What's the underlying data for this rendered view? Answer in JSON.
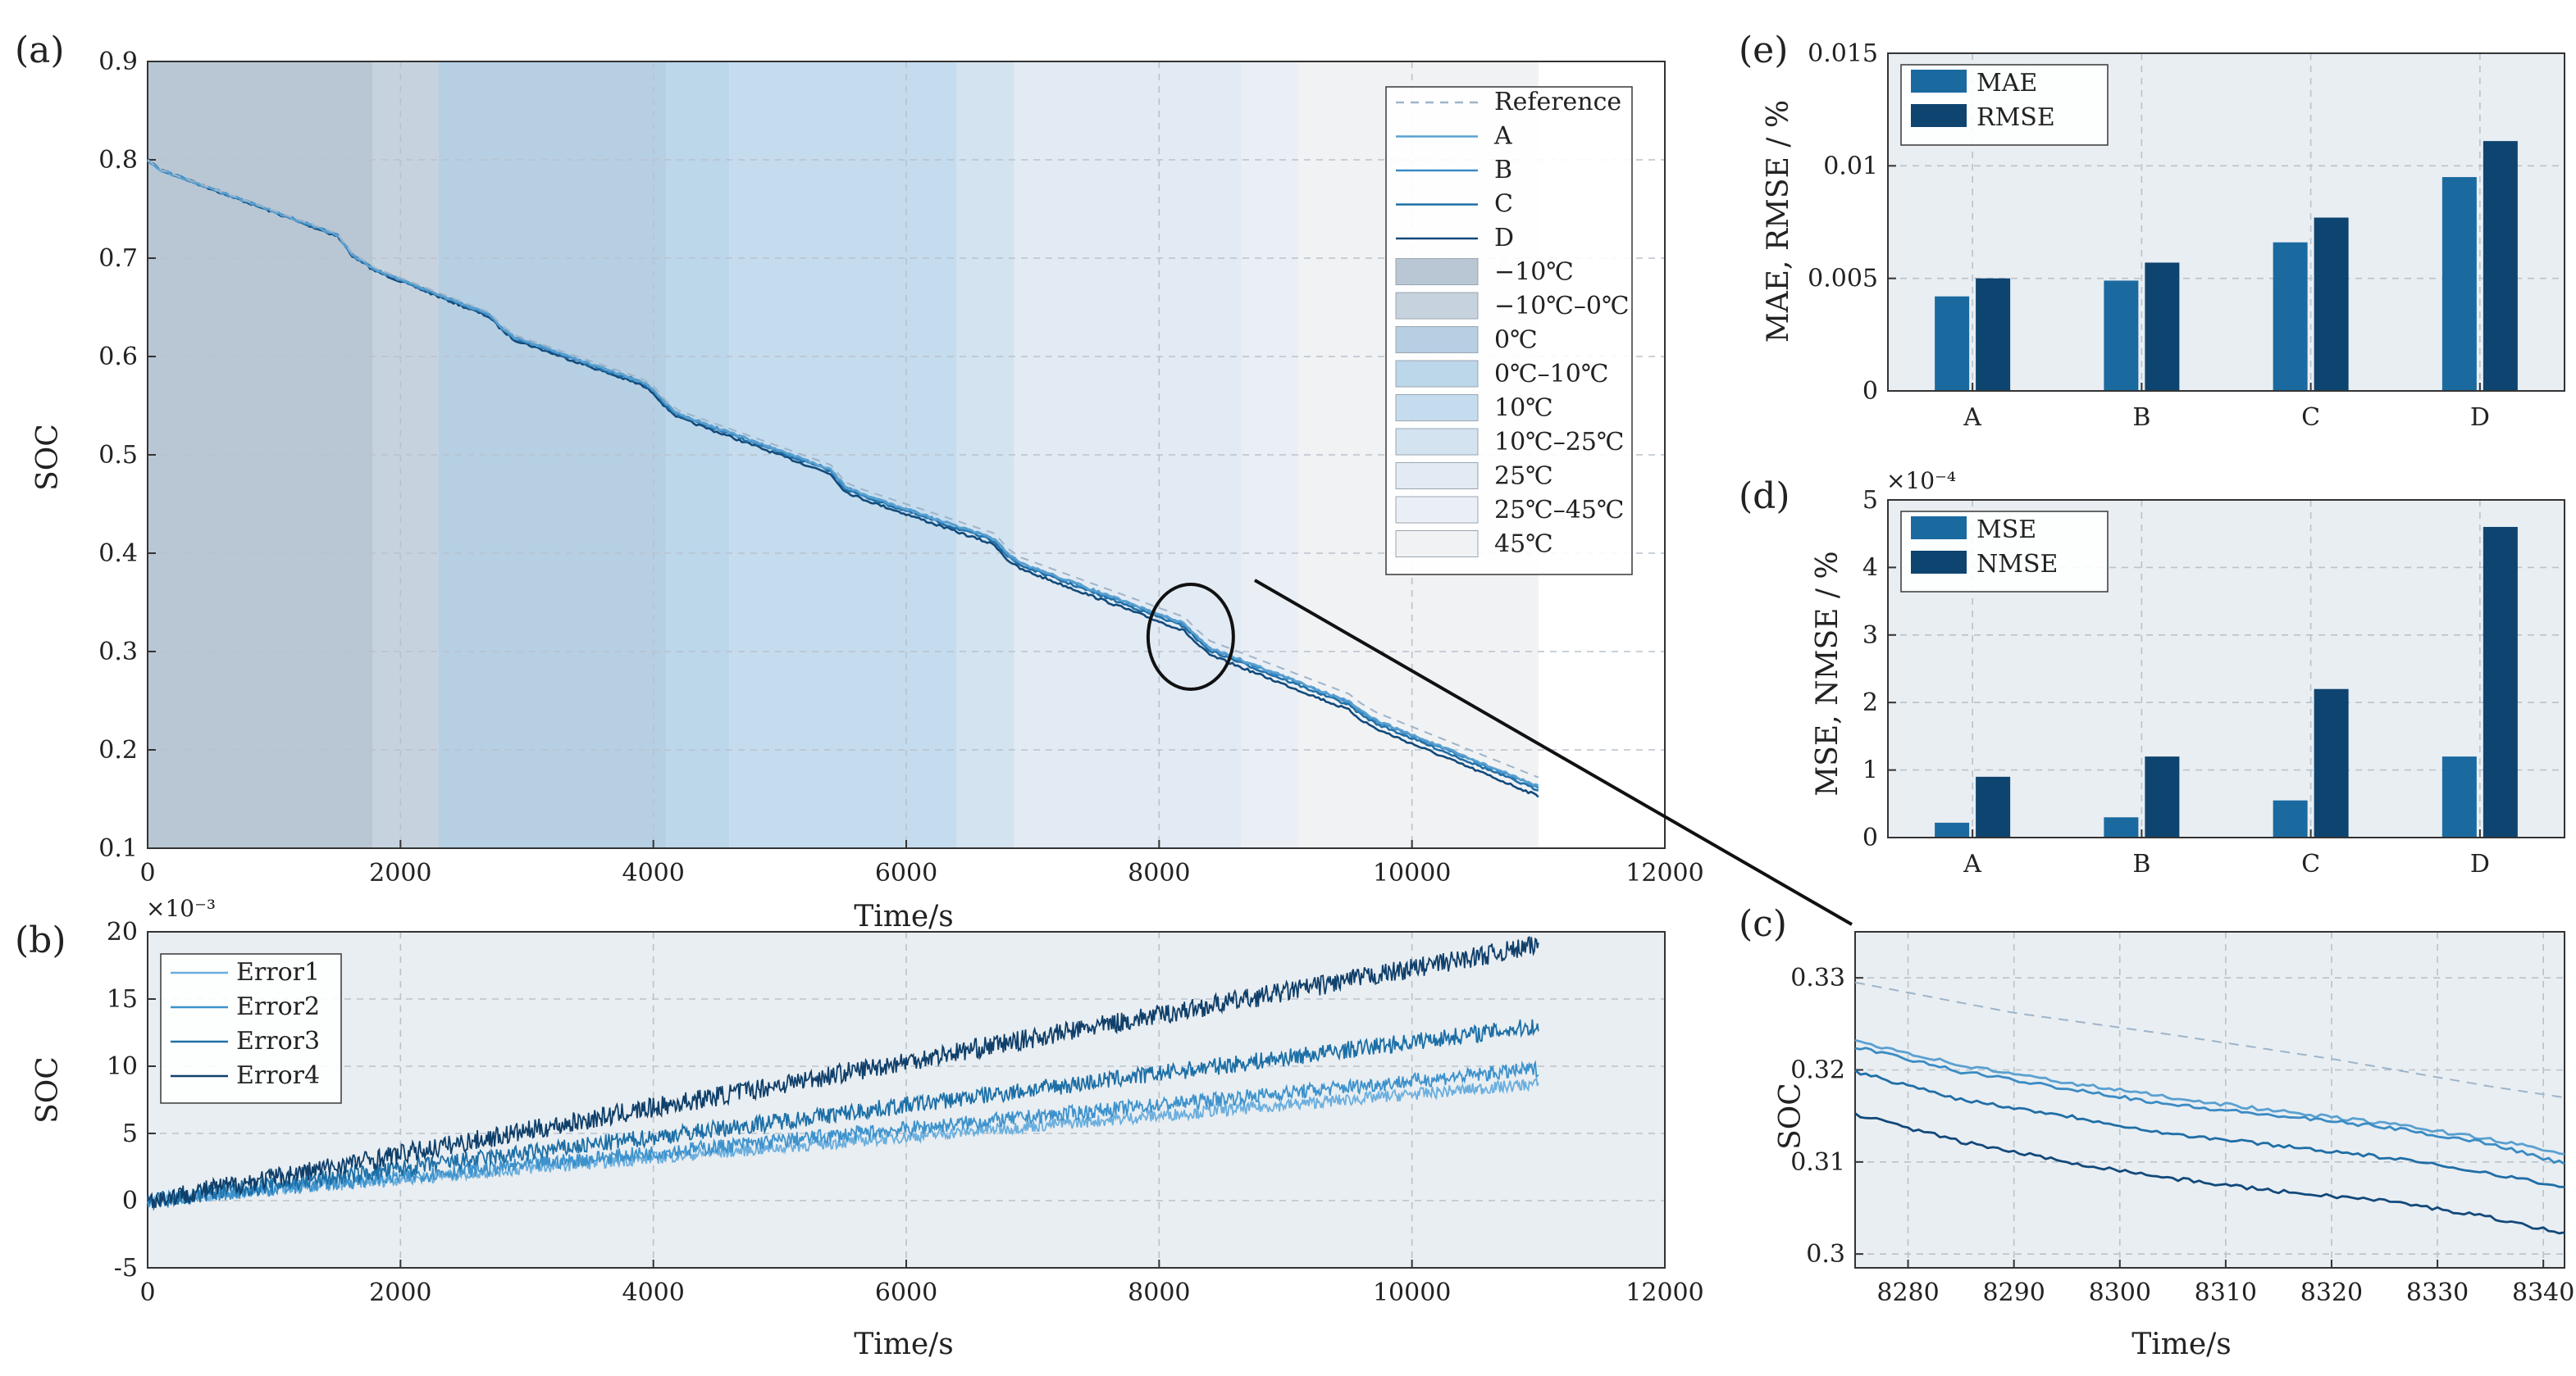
{
  "colors": {
    "ref": "#9fb4c9",
    "lineA": "#5aa0d0",
    "lineB": "#3a8bc4",
    "lineC": "#1f6ea6",
    "lineD": "#12497a",
    "err1": "#6aaede",
    "err2": "#3d92cc",
    "err3": "#1c6fa6",
    "err4": "#0f3f6a",
    "bar1": "#1a6aa0",
    "bar2": "#0e4470",
    "temp": [
      "#b8c7d3",
      "#c6d3de",
      "#b6cfe3",
      "#bcd6ea",
      "#c4dcee",
      "#d3e3f0",
      "#e2eaf3",
      "#eaeff6",
      "#f0f2f4"
    ]
  },
  "chart_data": [
    {
      "id": "a",
      "panel_label": "(a)",
      "type": "line",
      "xlabel": "Time/s",
      "ylabel": "SOC",
      "xlim": [
        0,
        12000
      ],
      "ylim": [
        0.1,
        0.9
      ],
      "xticks": [
        0,
        2000,
        4000,
        6000,
        8000,
        10000,
        12000
      ],
      "yticks": [
        0.1,
        0.2,
        0.3,
        0.4,
        0.5,
        0.6,
        0.7,
        0.8,
        0.9
      ],
      "grid": true,
      "temperature_bands": [
        {
          "label": "−10℃",
          "x0": 0,
          "x1": 1780
        },
        {
          "label": "−10℃–0℃",
          "x0": 1780,
          "x1": 2300
        },
        {
          "label": "0℃",
          "x0": 2300,
          "x1": 4100
        },
        {
          "label": "0℃–10℃",
          "x0": 4100,
          "x1": 4600
        },
        {
          "label": "10℃",
          "x0": 4600,
          "x1": 6400
        },
        {
          "label": "10℃–25℃",
          "x0": 6400,
          "x1": 6850
        },
        {
          "label": "25℃",
          "x0": 6850,
          "x1": 8650
        },
        {
          "label": "25℃–45℃",
          "x0": 8650,
          "x1": 9100
        },
        {
          "label": "45℃",
          "x0": 9100,
          "x1": 11000
        }
      ],
      "series": [
        {
          "name": "Reference",
          "style": "dashed"
        },
        {
          "name": "A",
          "offset_end": 0.009
        },
        {
          "name": "B",
          "offset_end": 0.01
        },
        {
          "name": "C",
          "offset_end": 0.013
        },
        {
          "name": "D",
          "offset_end": 0.019
        }
      ],
      "reference_curve": {
        "x": [
          0,
          100,
          1500,
          1620,
          1800,
          2700,
          2800,
          2900,
          3900,
          4000,
          4100,
          4200,
          5400,
          5520,
          5650,
          6700,
          6800,
          6900,
          8200,
          8300,
          8400,
          9500,
          9600,
          9720,
          11000
        ],
        "y": [
          0.8,
          0.79,
          0.725,
          0.705,
          0.69,
          0.645,
          0.632,
          0.622,
          0.578,
          0.57,
          0.555,
          0.545,
          0.49,
          0.472,
          0.465,
          0.42,
          0.405,
          0.396,
          0.335,
          0.322,
          0.311,
          0.257,
          0.247,
          0.238,
          0.172
        ]
      },
      "legend_position": "top-right"
    },
    {
      "id": "b",
      "panel_label": "(b)",
      "type": "line",
      "xlabel": "Time/s",
      "ylabel": "SOC",
      "scale_label": "×10⁻³",
      "xlim": [
        0,
        12000
      ],
      "ylim": [
        -5,
        20
      ],
      "xticks": [
        0,
        2000,
        4000,
        6000,
        8000,
        10000,
        12000
      ],
      "yticks": [
        -5,
        0,
        5,
        10,
        15,
        20
      ],
      "grid": true,
      "series": [
        {
          "name": "Error1",
          "start": 0,
          "end": 8.7
        },
        {
          "name": "Error2",
          "start": 0,
          "end": 9.8
        },
        {
          "name": "Error3",
          "start": 0,
          "end": 13.0
        },
        {
          "name": "Error4",
          "start": 0,
          "end": 19.0
        }
      ],
      "legend_position": "top-left"
    },
    {
      "id": "c",
      "panel_label": "(c)",
      "type": "line",
      "xlabel": "Time/s",
      "ylabel": "SOC",
      "xlim": [
        8275,
        8342
      ],
      "ylim": [
        0.2985,
        0.335
      ],
      "xticks": [
        8280,
        8290,
        8300,
        8310,
        8320,
        8330,
        8340
      ],
      "yticks": [
        0.3,
        0.31,
        0.32,
        0.33
      ],
      "grid": true,
      "series": [
        {
          "name": "Reference",
          "style": "dashed",
          "x": [
            8275,
            8290,
            8305,
            8320,
            8335,
            8342
          ],
          "y": [
            0.3295,
            0.3262,
            0.3238,
            0.3212,
            0.3182,
            0.317
          ]
        },
        {
          "name": "A",
          "x": [
            8275,
            8285,
            8295,
            8305,
            8315,
            8325,
            8335,
            8342
          ],
          "y": [
            0.3232,
            0.3205,
            0.3186,
            0.317,
            0.3155,
            0.3142,
            0.3125,
            0.3108
          ]
        },
        {
          "name": "B",
          "x": [
            8275,
            8285,
            8295,
            8305,
            8315,
            8325,
            8335,
            8342
          ],
          "y": [
            0.3225,
            0.3198,
            0.318,
            0.3162,
            0.315,
            0.3138,
            0.312,
            0.3098
          ]
        },
        {
          "name": "C",
          "x": [
            8275,
            8285,
            8295,
            8305,
            8315,
            8325,
            8335,
            8342
          ],
          "y": [
            0.3198,
            0.3168,
            0.315,
            0.313,
            0.3118,
            0.3105,
            0.3088,
            0.3072
          ]
        },
        {
          "name": "D",
          "x": [
            8275,
            8285,
            8295,
            8305,
            8315,
            8325,
            8335,
            8342
          ],
          "y": [
            0.3152,
            0.3122,
            0.31,
            0.3082,
            0.3068,
            0.3058,
            0.304,
            0.3022
          ]
        }
      ]
    },
    {
      "id": "d",
      "panel_label": "(d)",
      "type": "bar",
      "xlabel": "",
      "ylabel": "MSE, NMSE / %",
      "scale_label": "×10⁻⁴",
      "categories": [
        "A",
        "B",
        "C",
        "D"
      ],
      "ylim": [
        0,
        5
      ],
      "yticks": [
        0,
        1,
        2,
        3,
        4,
        5
      ],
      "grid": true,
      "series": [
        {
          "name": "MSE",
          "values": [
            0.22,
            0.3,
            0.55,
            1.2
          ]
        },
        {
          "name": "NMSE",
          "values": [
            0.9,
            1.2,
            2.2,
            4.6
          ]
        }
      ],
      "legend_position": "top-left"
    },
    {
      "id": "e",
      "panel_label": "(e)",
      "type": "bar",
      "xlabel": "",
      "ylabel": "MAE, RMSE / %",
      "categories": [
        "A",
        "B",
        "C",
        "D"
      ],
      "ylim": [
        0,
        0.015
      ],
      "yticks": [
        0,
        0.005,
        0.01,
        0.015
      ],
      "ytick_labels": [
        "0",
        "0.005",
        "0.01",
        "0.015"
      ],
      "grid": true,
      "series": [
        {
          "name": "MAE",
          "values": [
            0.0042,
            0.0049,
            0.0066,
            0.0095
          ]
        },
        {
          "name": "RMSE",
          "values": [
            0.005,
            0.0057,
            0.0077,
            0.0111
          ]
        }
      ],
      "legend_position": "top-left"
    }
  ]
}
